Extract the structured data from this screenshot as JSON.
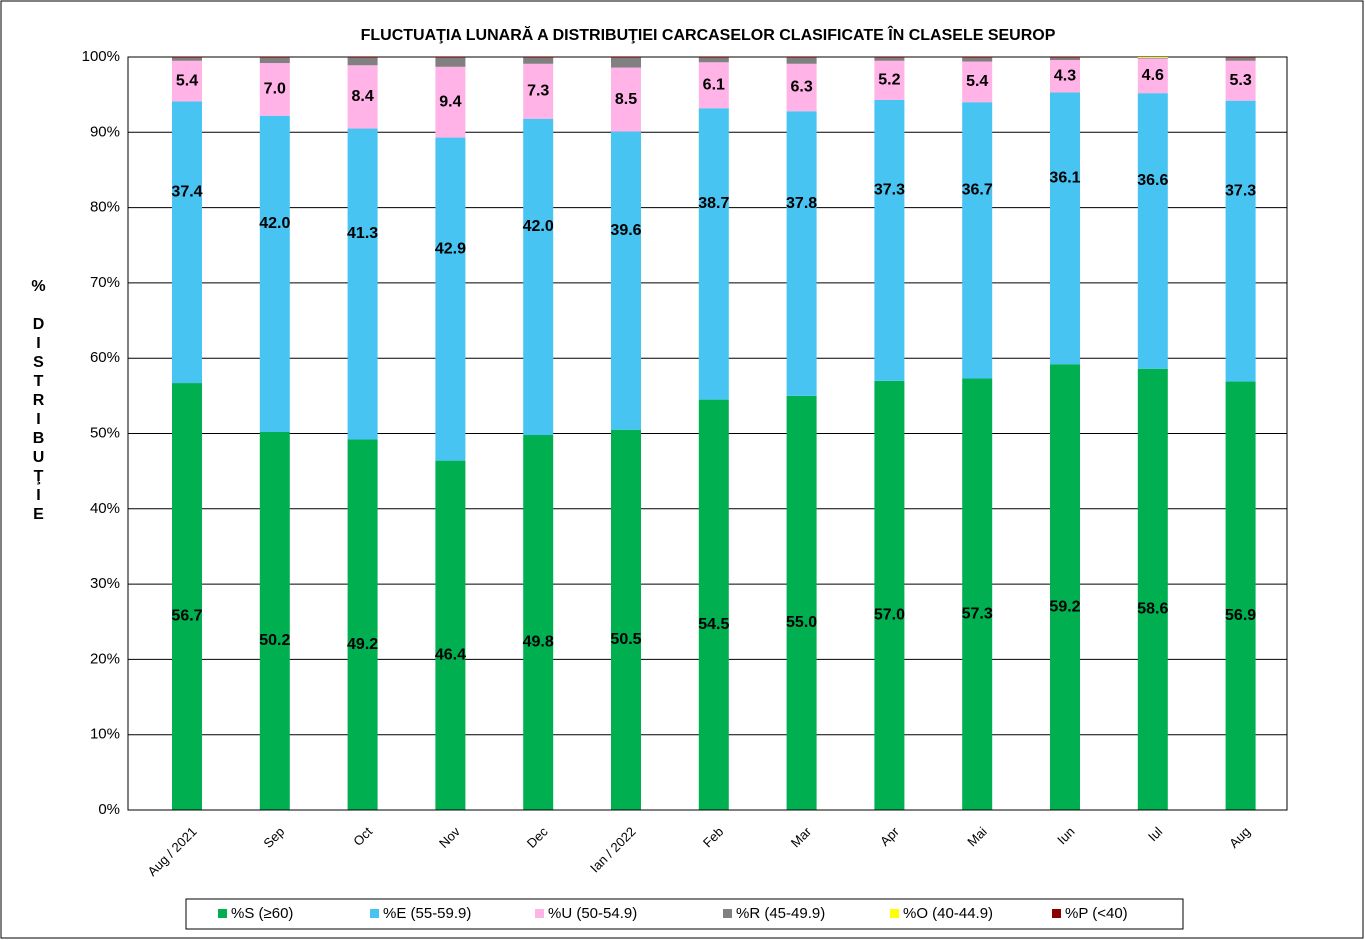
{
  "chart_data": {
    "type": "stacked_bar",
    "title": "FLUCTUAŢIA LUNARĂ  A DISTRIBUŢIEI  CARCASELOR  CLASIFICATE  ÎN CLASELE  SEUROP",
    "y_label": "% DISTRIBUŢIE",
    "categories": [
      "Aug / 2021",
      "Sep",
      "Oct",
      "Nov",
      "Dec",
      "Ian / 2022",
      "Feb",
      "Mar",
      "Apr",
      "Mai",
      "Iun",
      "Iul",
      "Aug"
    ],
    "series": [
      {
        "name": "%S (≥60)",
        "color": "#00b050",
        "values": [
          56.7,
          50.2,
          49.2,
          46.4,
          49.8,
          50.5,
          54.5,
          55.0,
          57.0,
          57.3,
          59.2,
          58.6,
          56.9
        ],
        "value_labels": [
          "56.7",
          "50.2",
          "49.2",
          "46.4",
          "49.8",
          "50.5",
          "54.5",
          "55.0",
          "57.0",
          "57.3",
          "59.2",
          "58.6",
          "56.9"
        ]
      },
      {
        "name": "%E (55-59.9)",
        "color": "#47c4f2",
        "values": [
          37.4,
          42.0,
          41.3,
          42.9,
          42.0,
          39.6,
          38.7,
          37.8,
          37.3,
          36.7,
          36.1,
          36.6,
          37.3
        ],
        "value_labels": [
          "37.4",
          "42.0",
          "41.3",
          "42.9",
          "42.0",
          "39.6",
          "38.7",
          "37.8",
          "37.3",
          "36.7",
          "36.1",
          "36.6",
          "37.3"
        ]
      },
      {
        "name": "%U (50-54.9)",
        "color": "#ffb3e6",
        "values": [
          5.4,
          7.0,
          8.4,
          9.4,
          7.3,
          8.5,
          6.1,
          6.3,
          5.2,
          5.4,
          4.3,
          4.6,
          5.3
        ],
        "value_labels": [
          "5.4",
          "7.0",
          "8.4",
          "9.4",
          "7.3",
          "8.5",
          "6.1",
          "6.3",
          "5.2",
          "5.4",
          "4.3",
          "4.6",
          "5.3"
        ]
      },
      {
        "name": "%R (45-49.9)",
        "color": "#808080",
        "values": [
          0.4,
          0.7,
          1.0,
          1.2,
          0.8,
          1.3,
          0.6,
          0.8,
          0.4,
          0.5,
          0.3,
          0.1,
          0.4
        ]
      },
      {
        "name": "%O (40-44.9)",
        "color": "#ffff00",
        "values": [
          0,
          0,
          0,
          0,
          0,
          0,
          0,
          0,
          0,
          0,
          0,
          0.1,
          0
        ]
      },
      {
        "name": "%P (<40)",
        "color": "#8b0000",
        "values": [
          0.1,
          0.1,
          0.1,
          0.1,
          0.1,
          0.1,
          0.1,
          0.1,
          0.1,
          0.1,
          0.1,
          0,
          0.1
        ]
      }
    ],
    "ylim": [
      0,
      100
    ],
    "yticks": [
      {
        "value": 0,
        "label": "0%"
      },
      {
        "value": 10,
        "label": "10%"
      },
      {
        "value": 20,
        "label": "20%"
      },
      {
        "value": 30,
        "label": "30%"
      },
      {
        "value": 40,
        "label": "40%"
      },
      {
        "value": 50,
        "label": "50%"
      },
      {
        "value": 60,
        "label": "60%"
      },
      {
        "value": 70,
        "label": "70%"
      },
      {
        "value": 80,
        "label": "80%"
      },
      {
        "value": 90,
        "label": "90%"
      },
      {
        "value": 100,
        "label": "100%"
      }
    ],
    "grid": true,
    "legend": "bottom"
  }
}
